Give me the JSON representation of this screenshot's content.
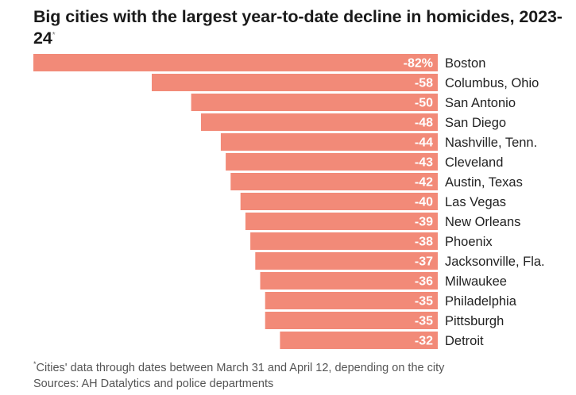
{
  "title": "Big cities with the largest year-to-date decline in homicides, 2023-24",
  "title_marker": "*",
  "footnote": {
    "marker": "*",
    "note": "Cities' data through dates between March 31 and April 12, depending on the city",
    "source": "Sources: AH Datalytics and police departments"
  },
  "colors": {
    "bar": "#f28a78",
    "label_text": "#222222",
    "value_text": "#ffffff"
  },
  "chart_data": {
    "type": "bar",
    "orientation": "horizontal",
    "unit": "percent change in homicides",
    "categories": [
      "Boston",
      "Columbus, Ohio",
      "San Antonio",
      "San Diego",
      "Nashville, Tenn.",
      "Cleveland",
      "Austin, Texas",
      "Las Vegas",
      "New Orleans",
      "Phoenix",
      "Jacksonville, Fla.",
      "Milwaukee",
      "Philadelphia",
      "Pittsburgh",
      "Detroit"
    ],
    "values": [
      -82,
      -58,
      -50,
      -48,
      -44,
      -43,
      -42,
      -40,
      -39,
      -38,
      -37,
      -36,
      -35,
      -35,
      -32
    ],
    "value_labels": [
      "-82%",
      "-58",
      "-50",
      "-48",
      "-44",
      "-43",
      "-42",
      "-40",
      "-39",
      "-38",
      "-37",
      "-36",
      "-35",
      "-35",
      "-32"
    ],
    "xlim": [
      -82,
      0
    ],
    "grid": false,
    "legend": "none"
  }
}
